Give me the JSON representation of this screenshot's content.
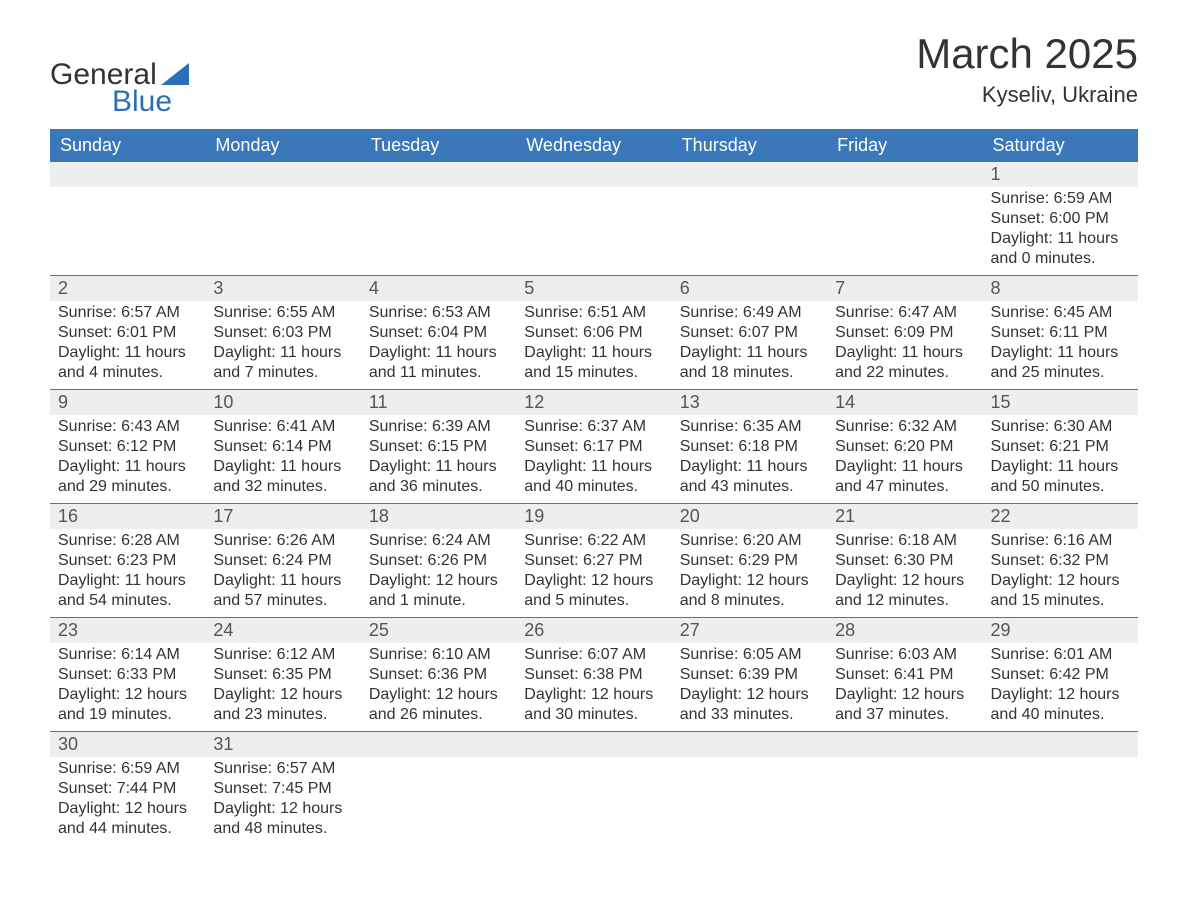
{
  "brand": {
    "name_line1": "General",
    "name_line2": "Blue",
    "accent_color": "#2d6fb7"
  },
  "header": {
    "title": "March 2025",
    "location": "Kyseliv, Ukraine"
  },
  "styling": {
    "header_bg": "#3a78b9",
    "header_text": "#ffffff",
    "day_row_bg": "#eeeeee",
    "day_separator": "#3a78b9",
    "body_text": "#333333",
    "page_bg": "#ffffff",
    "title_fontsize": 42,
    "subtitle_fontsize": 22,
    "header_fontsize": 18,
    "daynum_fontsize": 18,
    "cell_fontsize": 16
  },
  "calendar": {
    "type": "table",
    "columns": [
      "Sunday",
      "Monday",
      "Tuesday",
      "Wednesday",
      "Thursday",
      "Friday",
      "Saturday"
    ],
    "weeks": [
      {
        "days": [
          "",
          "",
          "",
          "",
          "",
          "",
          "1"
        ],
        "cells": [
          null,
          null,
          null,
          null,
          null,
          null,
          {
            "sunrise": "Sunrise: 6:59 AM",
            "sunset": "Sunset: 6:00 PM",
            "dl1": "Daylight: 11 hours",
            "dl2": "and 0 minutes."
          }
        ]
      },
      {
        "days": [
          "2",
          "3",
          "4",
          "5",
          "6",
          "7",
          "8"
        ],
        "cells": [
          {
            "sunrise": "Sunrise: 6:57 AM",
            "sunset": "Sunset: 6:01 PM",
            "dl1": "Daylight: 11 hours",
            "dl2": "and 4 minutes."
          },
          {
            "sunrise": "Sunrise: 6:55 AM",
            "sunset": "Sunset: 6:03 PM",
            "dl1": "Daylight: 11 hours",
            "dl2": "and 7 minutes."
          },
          {
            "sunrise": "Sunrise: 6:53 AM",
            "sunset": "Sunset: 6:04 PM",
            "dl1": "Daylight: 11 hours",
            "dl2": "and 11 minutes."
          },
          {
            "sunrise": "Sunrise: 6:51 AM",
            "sunset": "Sunset: 6:06 PM",
            "dl1": "Daylight: 11 hours",
            "dl2": "and 15 minutes."
          },
          {
            "sunrise": "Sunrise: 6:49 AM",
            "sunset": "Sunset: 6:07 PM",
            "dl1": "Daylight: 11 hours",
            "dl2": "and 18 minutes."
          },
          {
            "sunrise": "Sunrise: 6:47 AM",
            "sunset": "Sunset: 6:09 PM",
            "dl1": "Daylight: 11 hours",
            "dl2": "and 22 minutes."
          },
          {
            "sunrise": "Sunrise: 6:45 AM",
            "sunset": "Sunset: 6:11 PM",
            "dl1": "Daylight: 11 hours",
            "dl2": "and 25 minutes."
          }
        ]
      },
      {
        "days": [
          "9",
          "10",
          "11",
          "12",
          "13",
          "14",
          "15"
        ],
        "cells": [
          {
            "sunrise": "Sunrise: 6:43 AM",
            "sunset": "Sunset: 6:12 PM",
            "dl1": "Daylight: 11 hours",
            "dl2": "and 29 minutes."
          },
          {
            "sunrise": "Sunrise: 6:41 AM",
            "sunset": "Sunset: 6:14 PM",
            "dl1": "Daylight: 11 hours",
            "dl2": "and 32 minutes."
          },
          {
            "sunrise": "Sunrise: 6:39 AM",
            "sunset": "Sunset: 6:15 PM",
            "dl1": "Daylight: 11 hours",
            "dl2": "and 36 minutes."
          },
          {
            "sunrise": "Sunrise: 6:37 AM",
            "sunset": "Sunset: 6:17 PM",
            "dl1": "Daylight: 11 hours",
            "dl2": "and 40 minutes."
          },
          {
            "sunrise": "Sunrise: 6:35 AM",
            "sunset": "Sunset: 6:18 PM",
            "dl1": "Daylight: 11 hours",
            "dl2": "and 43 minutes."
          },
          {
            "sunrise": "Sunrise: 6:32 AM",
            "sunset": "Sunset: 6:20 PM",
            "dl1": "Daylight: 11 hours",
            "dl2": "and 47 minutes."
          },
          {
            "sunrise": "Sunrise: 6:30 AM",
            "sunset": "Sunset: 6:21 PM",
            "dl1": "Daylight: 11 hours",
            "dl2": "and 50 minutes."
          }
        ]
      },
      {
        "days": [
          "16",
          "17",
          "18",
          "19",
          "20",
          "21",
          "22"
        ],
        "cells": [
          {
            "sunrise": "Sunrise: 6:28 AM",
            "sunset": "Sunset: 6:23 PM",
            "dl1": "Daylight: 11 hours",
            "dl2": "and 54 minutes."
          },
          {
            "sunrise": "Sunrise: 6:26 AM",
            "sunset": "Sunset: 6:24 PM",
            "dl1": "Daylight: 11 hours",
            "dl2": "and 57 minutes."
          },
          {
            "sunrise": "Sunrise: 6:24 AM",
            "sunset": "Sunset: 6:26 PM",
            "dl1": "Daylight: 12 hours",
            "dl2": "and 1 minute."
          },
          {
            "sunrise": "Sunrise: 6:22 AM",
            "sunset": "Sunset: 6:27 PM",
            "dl1": "Daylight: 12 hours",
            "dl2": "and 5 minutes."
          },
          {
            "sunrise": "Sunrise: 6:20 AM",
            "sunset": "Sunset: 6:29 PM",
            "dl1": "Daylight: 12 hours",
            "dl2": "and 8 minutes."
          },
          {
            "sunrise": "Sunrise: 6:18 AM",
            "sunset": "Sunset: 6:30 PM",
            "dl1": "Daylight: 12 hours",
            "dl2": "and 12 minutes."
          },
          {
            "sunrise": "Sunrise: 6:16 AM",
            "sunset": "Sunset: 6:32 PM",
            "dl1": "Daylight: 12 hours",
            "dl2": "and 15 minutes."
          }
        ]
      },
      {
        "days": [
          "23",
          "24",
          "25",
          "26",
          "27",
          "28",
          "29"
        ],
        "cells": [
          {
            "sunrise": "Sunrise: 6:14 AM",
            "sunset": "Sunset: 6:33 PM",
            "dl1": "Daylight: 12 hours",
            "dl2": "and 19 minutes."
          },
          {
            "sunrise": "Sunrise: 6:12 AM",
            "sunset": "Sunset: 6:35 PM",
            "dl1": "Daylight: 12 hours",
            "dl2": "and 23 minutes."
          },
          {
            "sunrise": "Sunrise: 6:10 AM",
            "sunset": "Sunset: 6:36 PM",
            "dl1": "Daylight: 12 hours",
            "dl2": "and 26 minutes."
          },
          {
            "sunrise": "Sunrise: 6:07 AM",
            "sunset": "Sunset: 6:38 PM",
            "dl1": "Daylight: 12 hours",
            "dl2": "and 30 minutes."
          },
          {
            "sunrise": "Sunrise: 6:05 AM",
            "sunset": "Sunset: 6:39 PM",
            "dl1": "Daylight: 12 hours",
            "dl2": "and 33 minutes."
          },
          {
            "sunrise": "Sunrise: 6:03 AM",
            "sunset": "Sunset: 6:41 PM",
            "dl1": "Daylight: 12 hours",
            "dl2": "and 37 minutes."
          },
          {
            "sunrise": "Sunrise: 6:01 AM",
            "sunset": "Sunset: 6:42 PM",
            "dl1": "Daylight: 12 hours",
            "dl2": "and 40 minutes."
          }
        ]
      },
      {
        "days": [
          "30",
          "31",
          "",
          "",
          "",
          "",
          ""
        ],
        "cells": [
          {
            "sunrise": "Sunrise: 6:59 AM",
            "sunset": "Sunset: 7:44 PM",
            "dl1": "Daylight: 12 hours",
            "dl2": "and 44 minutes."
          },
          {
            "sunrise": "Sunrise: 6:57 AM",
            "sunset": "Sunset: 7:45 PM",
            "dl1": "Daylight: 12 hours",
            "dl2": "and 48 minutes."
          },
          null,
          null,
          null,
          null,
          null
        ]
      }
    ]
  }
}
